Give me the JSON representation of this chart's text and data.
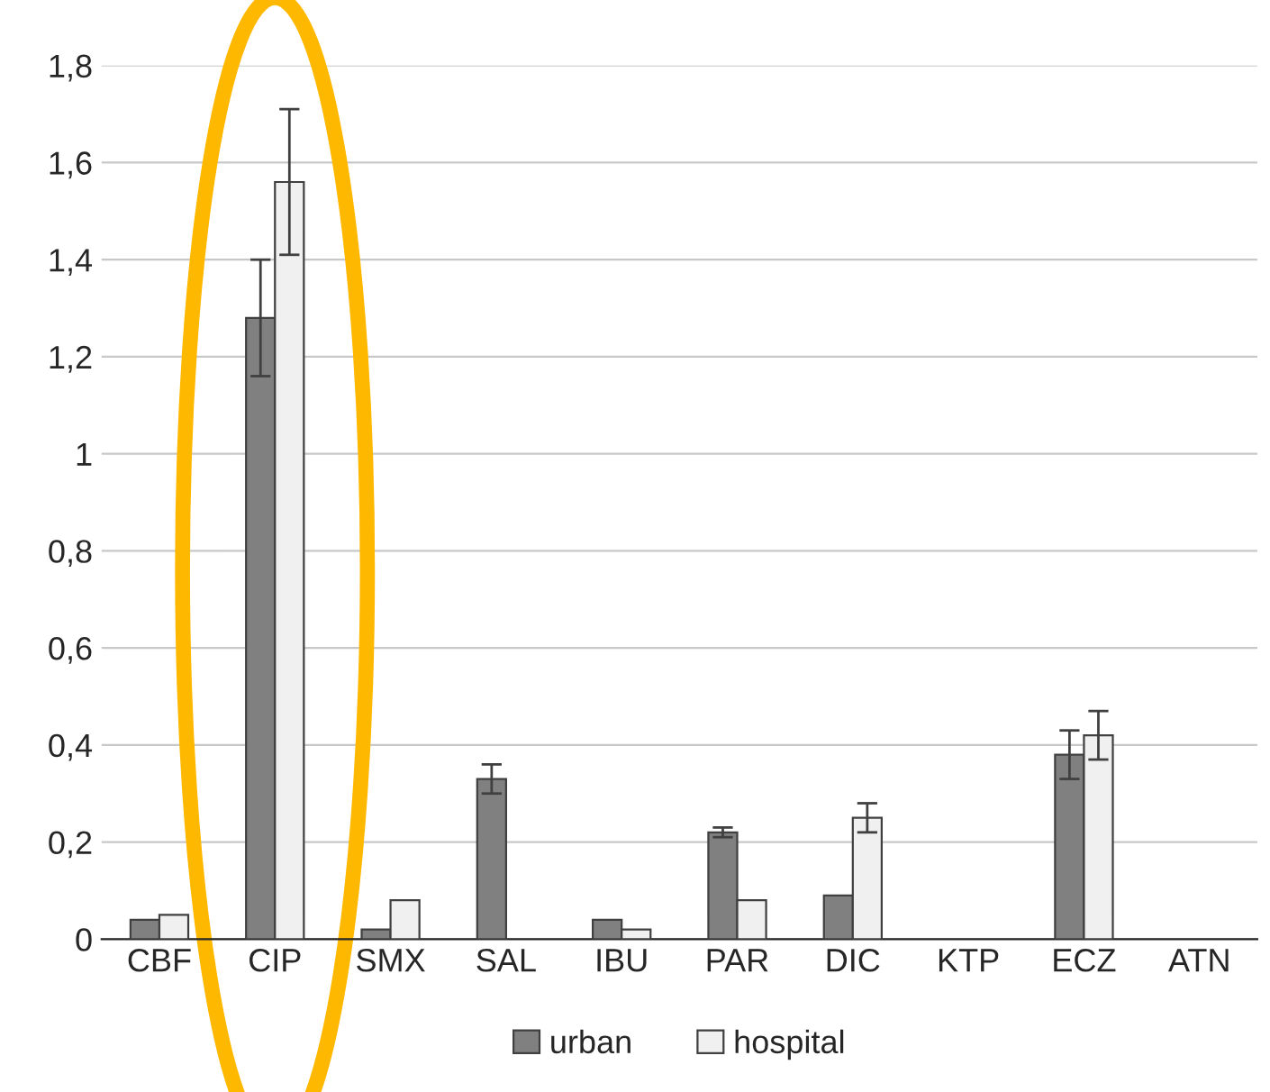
{
  "chart_data": {
    "type": "bar",
    "categories": [
      "CBF",
      "CIP",
      "SMX",
      "SAL",
      "IBU",
      "PAR",
      "DIC",
      "KTP",
      "ECZ",
      "ATN"
    ],
    "series": [
      {
        "name": "urban",
        "color": "#808080",
        "values": [
          0.04,
          1.28,
          0.02,
          0.33,
          0.04,
          0.22,
          0.09,
          null,
          0.38,
          null
        ],
        "errors": [
          null,
          0.12,
          null,
          0.03,
          null,
          0.01,
          null,
          null,
          0.05,
          null
        ]
      },
      {
        "name": "hospital",
        "color": "#f0f0f0",
        "values": [
          0.05,
          1.56,
          0.08,
          null,
          0.02,
          0.08,
          0.25,
          null,
          0.42,
          null
        ],
        "errors": [
          null,
          0.15,
          null,
          null,
          null,
          null,
          0.03,
          null,
          0.05,
          null
        ]
      }
    ],
    "ylim": [
      0,
      1.8
    ],
    "yticks": [
      {
        "value": 0,
        "label": "0"
      },
      {
        "value": 0.2,
        "label": "0,2"
      },
      {
        "value": 0.4,
        "label": "0,4"
      },
      {
        "value": 0.6,
        "label": "0,6"
      },
      {
        "value": 0.8,
        "label": "0,8"
      },
      {
        "value": 1,
        "label": "1"
      },
      {
        "value": 1.2,
        "label": "1,2"
      },
      {
        "value": 1.4,
        "label": "1,4"
      },
      {
        "value": 1.6,
        "label": "1,6"
      },
      {
        "value": 1.8,
        "label": "1,8"
      }
    ],
    "grid": "y",
    "legend": "bottom"
  }
}
